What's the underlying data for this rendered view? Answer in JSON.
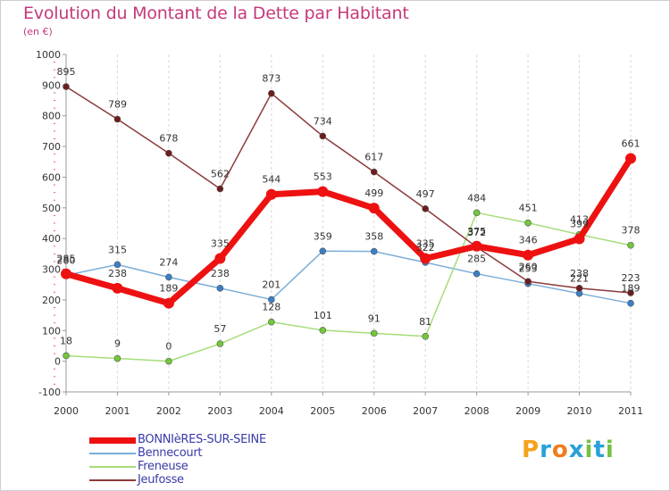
{
  "header": {
    "title": "Evolution du Montant de la Dette par Habitant",
    "subtitle": "(en €)"
  },
  "brand": {
    "letters": [
      "P",
      "r",
      "o",
      "x",
      "i",
      "t",
      "i"
    ],
    "colors": [
      "#f5a21b",
      "#2aa0d8",
      "#f07c1e",
      "#2aa0d8",
      "#76c043",
      "#2aa0d8",
      "#76c043"
    ]
  },
  "chart_data": {
    "type": "line",
    "title": "Evolution du Montant de la Dette par Habitant",
    "subtitle": "(en €)",
    "x": [
      "2000",
      "2001",
      "2002",
      "2003",
      "2004",
      "2005",
      "2006",
      "2007",
      "2008",
      "2009",
      "2010",
      "2011"
    ],
    "ylim": [
      -100,
      1000
    ],
    "yticks": [
      "-100",
      "0",
      "100",
      "200",
      "300",
      "400",
      "500",
      "600",
      "700",
      "800",
      "900",
      "1000"
    ],
    "grid": "vertical dashed",
    "legend_position": "bottom-left",
    "series": [
      {
        "name": "BONNIèRES-SUR-SEINE",
        "values": [
          285,
          238,
          189,
          335,
          544,
          553,
          499,
          335,
          375,
          346,
          399,
          661
        ],
        "labels": [
          "285",
          "238",
          "189",
          "335",
          "544",
          "553",
          "499",
          "335",
          "375",
          "346",
          "399",
          "661"
        ],
        "color": "#ee1111",
        "marker": "#ee1111"
      },
      {
        "name": "Bennecourt",
        "values": [
          280,
          315,
          274,
          238,
          201,
          359,
          358,
          322,
          285,
          253,
          221,
          189
        ],
        "labels": [
          "280",
          "315",
          "274",
          "238",
          "201",
          "359",
          "358",
          "322",
          "285",
          "253",
          "221",
          "189"
        ],
        "color": "#7aaed8",
        "marker": "#3a7fc8"
      },
      {
        "name": "Freneuse",
        "values": [
          18,
          9,
          0,
          57,
          128,
          101,
          91,
          81,
          484,
          451,
          413,
          378
        ],
        "labels": [
          "18",
          "9",
          "0",
          "57",
          "128",
          "101",
          "91",
          "81",
          "484",
          "451",
          "413",
          "378"
        ],
        "color": "#a6dd7a",
        "marker": "#72c83a"
      },
      {
        "name": "Jeufosse",
        "values": [
          895,
          789,
          678,
          562,
          873,
          734,
          617,
          497,
          372,
          260,
          238,
          223
        ],
        "labels": [
          "895",
          "789",
          "678",
          "562",
          "873",
          "734",
          "617",
          "497",
          "372",
          "260",
          "238",
          "223"
        ],
        "color": "#8b3a3a",
        "marker": "#6e1c1c"
      }
    ]
  }
}
